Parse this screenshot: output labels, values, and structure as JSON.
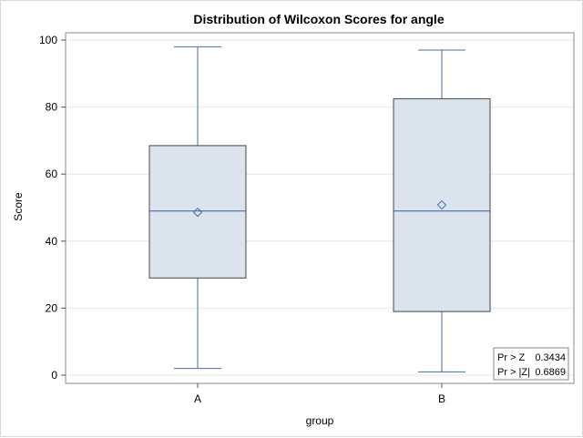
{
  "chart_data": {
    "type": "box",
    "title": "Distribution of Wilcoxon Scores for angle",
    "xlabel": "group",
    "ylabel": "Score",
    "ylim": [
      0,
      100
    ],
    "yticks": [
      0,
      20,
      40,
      60,
      80,
      100
    ],
    "grid": true,
    "categories": [
      "A",
      "B"
    ],
    "boxes": [
      {
        "category": "A",
        "min": 2,
        "q1": 29,
        "median": 49,
        "q3": 68.5,
        "max": 98,
        "mean": 48.6
      },
      {
        "category": "B",
        "min": 1,
        "q1": 19,
        "median": 49,
        "q3": 82.5,
        "max": 97,
        "mean": 50.8
      }
    ],
    "inset_table": {
      "placement": "bottom-right",
      "rows": [
        {
          "label": "Pr > Z",
          "value": "0.3434"
        },
        {
          "label": "Pr > |Z|",
          "value": "0.6869"
        }
      ]
    },
    "colors": {
      "box_fill": "#dbe3ed",
      "whisker": "#4a6aa8",
      "box_border": "#444444",
      "grid": "#e6e6e6"
    }
  }
}
